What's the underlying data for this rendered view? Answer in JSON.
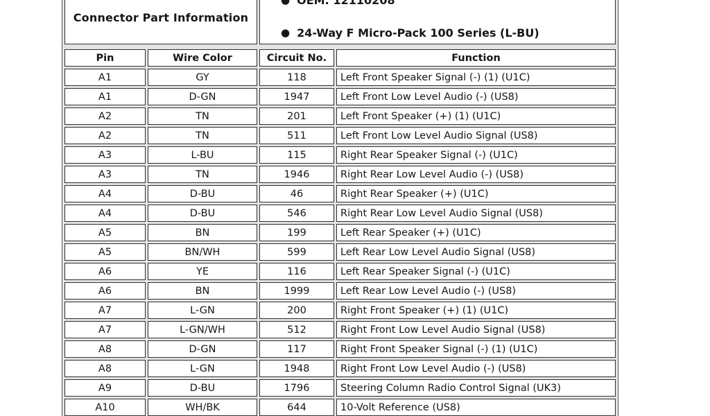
{
  "colors": {
    "page_background": "#ffffff",
    "cell_background": "#ffffff",
    "border": "#2e2e2e",
    "text": "#161616"
  },
  "connector_info": {
    "title": "Connector Part Information",
    "bullets": [
      "OEM: 12110208",
      "24-Way F Micro-Pack 100 Series (L-BU)"
    ]
  },
  "pinout_table": {
    "columns": [
      "Pin",
      "Wire Color",
      "Circuit No.",
      "Function"
    ],
    "rows": [
      {
        "pin": "A1",
        "wire_color": "GY",
        "circuit_no": "118",
        "function": "Left Front Speaker Signal (-) (1) (U1C)"
      },
      {
        "pin": "A1",
        "wire_color": "D-GN",
        "circuit_no": "1947",
        "function": "Left Front Low Level Audio (-) (US8)"
      },
      {
        "pin": "A2",
        "wire_color": "TN",
        "circuit_no": "201",
        "function": "Left Front Speaker (+) (1) (U1C)"
      },
      {
        "pin": "A2",
        "wire_color": "TN",
        "circuit_no": "511",
        "function": "Left Front Low Level Audio Signal (US8)"
      },
      {
        "pin": "A3",
        "wire_color": "L-BU",
        "circuit_no": "115",
        "function": "Right Rear Speaker Signal (-) (U1C)"
      },
      {
        "pin": "A3",
        "wire_color": "TN",
        "circuit_no": "1946",
        "function": "Right Rear Low Level Audio (-) (US8)"
      },
      {
        "pin": "A4",
        "wire_color": "D-BU",
        "circuit_no": "46",
        "function": "Right Rear Speaker (+) (U1C)"
      },
      {
        "pin": "A4",
        "wire_color": "D-BU",
        "circuit_no": "546",
        "function": "Right Rear Low Level Audio Signal (US8)"
      },
      {
        "pin": "A5",
        "wire_color": "BN",
        "circuit_no": "199",
        "function": "Left Rear Speaker (+) (U1C)"
      },
      {
        "pin": "A5",
        "wire_color": "BN/WH",
        "circuit_no": "599",
        "function": "Left Rear Low Level Audio Signal (US8)"
      },
      {
        "pin": "A6",
        "wire_color": "YE",
        "circuit_no": "116",
        "function": "Left Rear Speaker Signal (-) (U1C)"
      },
      {
        "pin": "A6",
        "wire_color": "BN",
        "circuit_no": "1999",
        "function": "Left Rear Low Level Audio (-) (US8)"
      },
      {
        "pin": "A7",
        "wire_color": "L-GN",
        "circuit_no": "200",
        "function": "Right Front Speaker (+) (1) (U1C)"
      },
      {
        "pin": "A7",
        "wire_color": "L-GN/WH",
        "circuit_no": "512",
        "function": "Right Front Low Level Audio Signal (US8)"
      },
      {
        "pin": "A8",
        "wire_color": "D-GN",
        "circuit_no": "117",
        "function": "Right Front Speaker Signal (-) (1) (U1C)"
      },
      {
        "pin": "A8",
        "wire_color": "L-GN",
        "circuit_no": "1948",
        "function": "Right Front Low Level Audio (-) (US8)"
      },
      {
        "pin": "A9",
        "wire_color": "D-BU",
        "circuit_no": "1796",
        "function": "Steering Column Radio Control Signal (UK3)"
      },
      {
        "pin": "A10",
        "wire_color": "WH/BK",
        "circuit_no": "644",
        "function": "10-Volt Reference (US8)"
      }
    ]
  }
}
